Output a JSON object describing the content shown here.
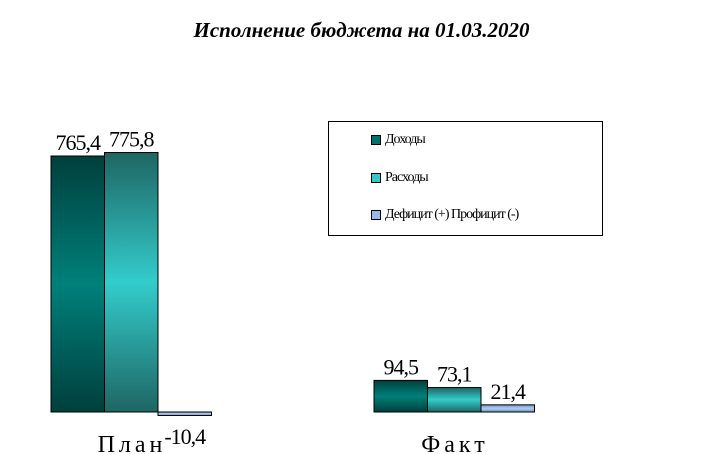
{
  "chart_data": {
    "type": "bar",
    "title": "Исполнение бюджета на 01.03.2020",
    "categories": [
      "План",
      "Факт"
    ],
    "series": [
      {
        "name": "Доходы",
        "values": [
          765.4,
          94.5
        ],
        "labels": [
          "765,4",
          "94,5"
        ],
        "color": "#00706b"
      },
      {
        "name": "Расходы",
        "values": [
          775.8,
          73.1
        ],
        "labels": [
          "775,8",
          "73,1"
        ],
        "color": "#33c8c8"
      },
      {
        "name": "Дефицит (+) Профицит (-)",
        "values": [
          -10.4,
          21.4
        ],
        "labels": [
          "-10,4",
          "21,4"
        ],
        "color": "#99b8e8"
      }
    ],
    "legend_position": "right",
    "grid": false,
    "axes_visible": false
  }
}
